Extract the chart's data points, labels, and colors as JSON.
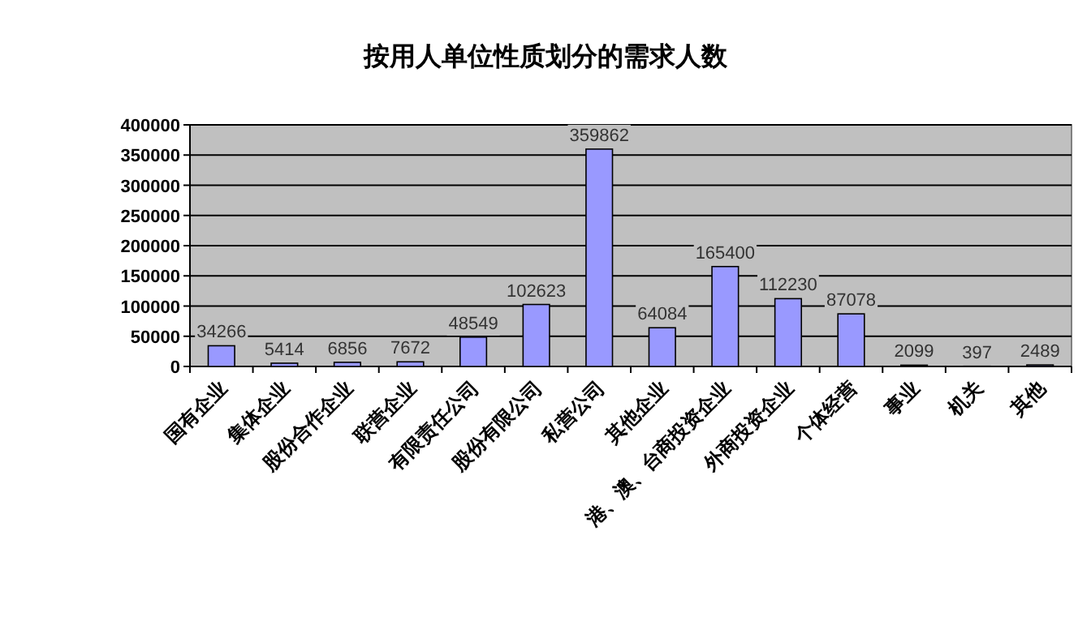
{
  "chart_data": {
    "type": "bar",
    "title": "按用人单位性质划分的需求人数",
    "categories": [
      "国有企业",
      "集体企业",
      "股份合作企业",
      "联营企业",
      "有限责任公司",
      "股份有限公司",
      "私营公司",
      "其他企业",
      "港、澳、台商投资企业",
      "外商投资企业",
      "个体经营",
      "事业",
      "机关",
      "其他"
    ],
    "values": [
      34266,
      5414,
      6856,
      7672,
      48549,
      102623,
      359862,
      64084,
      165400,
      112230,
      87078,
      2099,
      397,
      2489
    ],
    "color": "#9999ff",
    "ylim": [
      0,
      400000
    ],
    "yticks": [
      0,
      50000,
      100000,
      150000,
      200000,
      250000,
      300000,
      350000,
      400000
    ],
    "grid": "y",
    "data_labels": true
  }
}
